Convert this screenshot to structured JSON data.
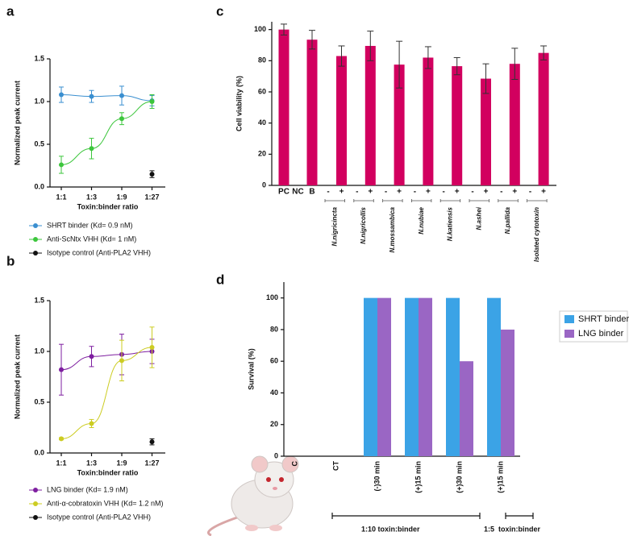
{
  "chart_data": [
    {
      "type": "line",
      "panel_label": "a",
      "xlabel": "Toxin:binder ratio",
      "ylabel": "Normalized peak current",
      "categories": [
        "1:1",
        "1:3",
        "1:9",
        "1:27"
      ],
      "ylim": [
        0,
        1.5
      ],
      "yticks": [
        {
          "value": 0,
          "label": "0.0"
        },
        {
          "value": 0.5,
          "label": "0.5"
        },
        {
          "value": 1,
          "label": "1.0"
        },
        {
          "value": 1.5,
          "label": "1.5"
        }
      ],
      "series": [
        {
          "name": "SHRT binder (Kd= 0.9 nM)",
          "color": "#3a8fd0",
          "values": [
            1.08,
            1.06,
            1.07,
            1.01
          ],
          "errors": [
            0.09,
            0.07,
            0.11,
            0.06
          ]
        },
        {
          "name": "Anti-ScNtx VHH (Kd= 1 nM)",
          "color": "#3cc63c",
          "values": [
            0.26,
            0.45,
            0.8,
            1.0
          ],
          "errors": [
            0.1,
            0.12,
            0.07,
            0.08
          ]
        },
        {
          "name": "Isotype control (Anti-PLA2 VHH)",
          "color": "#111111",
          "values": [
            null,
            null,
            null,
            0.15
          ],
          "errors": [
            null,
            null,
            null,
            0.04
          ]
        }
      ]
    },
    {
      "type": "line",
      "panel_label": "b",
      "xlabel": "Toxin:binder ratio",
      "ylabel": "Normalized peak current",
      "categories": [
        "1:1",
        "1:3",
        "1:9",
        "1:27"
      ],
      "ylim": [
        0,
        1.5
      ],
      "yticks": [
        {
          "value": 0,
          "label": "0.0"
        },
        {
          "value": 0.5,
          "label": "0.5"
        },
        {
          "value": 1,
          "label": "1.0"
        },
        {
          "value": 1.5,
          "label": "1.5"
        }
      ],
      "series": [
        {
          "name": "LNG binder (Kd= 1.9 nM)",
          "color": "#7e1fa0",
          "values": [
            0.82,
            0.95,
            0.97,
            1.0
          ],
          "errors": [
            0.25,
            0.1,
            0.2,
            0.12
          ]
        },
        {
          "name": "Anti-α-cobratoxin VHH (Kd= 1.2 nM)",
          "color": "#cccc22",
          "values": [
            0.14,
            0.29,
            0.91,
            1.04
          ],
          "errors": [
            0.01,
            0.04,
            0.2,
            0.2
          ]
        },
        {
          "name": "Isotype control (Anti-PLA2 VHH)",
          "color": "#111111",
          "values": [
            null,
            null,
            null,
            0.11
          ],
          "errors": [
            null,
            null,
            null,
            0.03
          ]
        }
      ]
    },
    {
      "type": "bar",
      "panel_label": "c",
      "ylabel": "Cell viability (%)",
      "color": "#d2005f",
      "categories": [
        "PC",
        "NC",
        "B",
        "-",
        "+",
        "-",
        "+",
        "-",
        "+",
        "-",
        "+",
        "-",
        "+",
        "-",
        "+",
        "-",
        "+",
        "-",
        "+"
      ],
      "values": [
        100,
        null,
        93.5,
        null,
        83,
        null,
        89.5,
        null,
        77.5,
        null,
        82,
        null,
        76.5,
        null,
        68.5,
        null,
        78,
        null,
        85
      ],
      "errors": [
        3.5,
        null,
        6,
        null,
        6.5,
        null,
        9.5,
        null,
        15,
        null,
        7,
        null,
        5.5,
        null,
        9.5,
        null,
        10,
        null,
        4.5
      ],
      "groups": [
        "N.nigricincta",
        "N.nigricollis",
        "N.mossambica",
        "N.nubiae",
        "N.katiensis",
        "N.ashei",
        "N.pallida",
        "Isolated cytotoxin"
      ],
      "ylim": [
        0,
        105
      ],
      "yticks": [
        0,
        20,
        40,
        60,
        80,
        100
      ]
    },
    {
      "type": "bar",
      "panel_label": "d",
      "ylabel": "Survival (%)",
      "categories": [
        "C",
        "CT",
        "(-)30 min",
        "(+)15 min",
        "(+)30 min",
        "(+)15 min"
      ],
      "series": [
        {
          "name": "SHRT binder",
          "color": "#3ba3e6",
          "values": [
            0,
            0,
            100,
            100,
            100,
            100
          ]
        },
        {
          "name": "LNG binder",
          "color": "#9a66c4",
          "values": [
            0,
            0,
            100,
            100,
            60,
            80
          ]
        }
      ],
      "annotations": [
        "1:10 toxin:binder",
        "1:5  toxin:binder"
      ],
      "ylim": [
        0,
        110
      ],
      "yticks": [
        0,
        20,
        40,
        60,
        80,
        100
      ]
    }
  ]
}
